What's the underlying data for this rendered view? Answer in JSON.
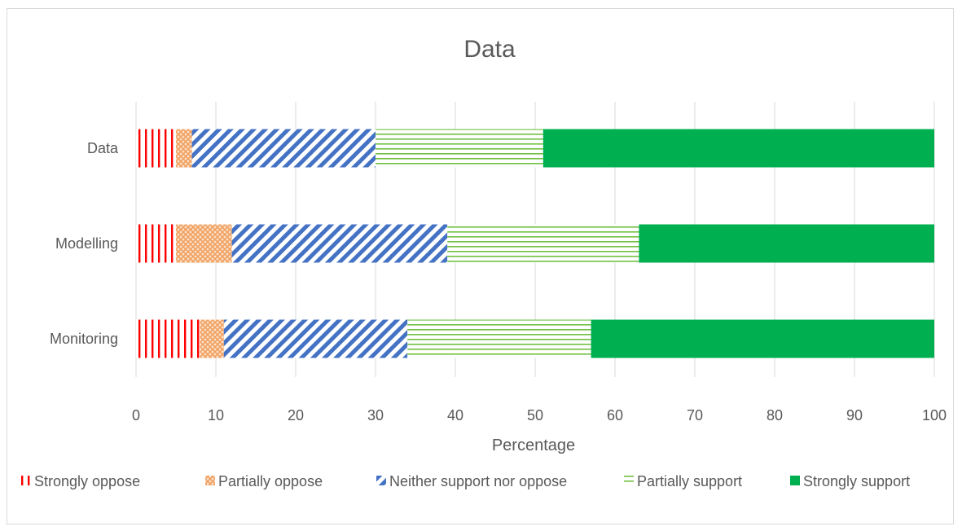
{
  "chart_data": {
    "type": "bar",
    "orientation": "horizontal",
    "stacked": true,
    "title": "Data",
    "xlabel": "Percentage",
    "ylabel": "",
    "xlim": [
      0,
      100
    ],
    "x_ticks": [
      0,
      10,
      20,
      30,
      40,
      50,
      60,
      70,
      80,
      90,
      100
    ],
    "grid": "vertical",
    "legend_position": "bottom",
    "categories": [
      "Data",
      "Modelling",
      "Monitoring"
    ],
    "series": [
      {
        "name": "Strongly oppose",
        "values": [
          5,
          5,
          8
        ],
        "color": "#ff0000",
        "pattern": "vertical-lines"
      },
      {
        "name": "Partially oppose",
        "values": [
          2,
          7,
          3
        ],
        "color": "#f4a460",
        "pattern": "crosshatch"
      },
      {
        "name": "Neither support nor oppose",
        "values": [
          23,
          27,
          23
        ],
        "color": "#4472c4",
        "pattern": "diagonal-stripes"
      },
      {
        "name": "Partially support",
        "values": [
          21,
          24,
          23
        ],
        "color": "#70c040",
        "pattern": "horizontal-lines"
      },
      {
        "name": "Strongly support",
        "values": [
          49,
          37,
          43
        ],
        "color": "#00b050",
        "pattern": "solid"
      }
    ]
  }
}
